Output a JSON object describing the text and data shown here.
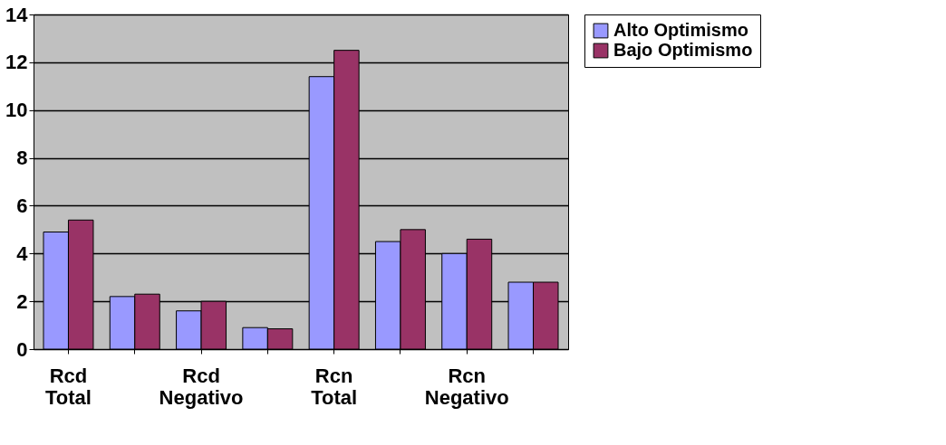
{
  "chart_data": {
    "type": "bar",
    "categories": [
      "Rcd Total",
      null,
      "Rcd Negativo",
      null,
      "Rcn Total",
      null,
      "Rcn Negativo",
      null
    ],
    "series": [
      {
        "name": "Alto Optimismo",
        "color": "#9999ff",
        "values": [
          4.9,
          2.2,
          1.6,
          0.9,
          11.4,
          4.5,
          4.0,
          2.8
        ]
      },
      {
        "name": "Bajo Optimismo",
        "color": "#993366",
        "values": [
          5.4,
          2.3,
          2.0,
          0.85,
          12.5,
          5.0,
          4.6,
          2.8
        ]
      }
    ],
    "ylim": [
      0,
      14
    ],
    "yticks": [
      0,
      2,
      4,
      6,
      8,
      10,
      12,
      14
    ],
    "grid": "y",
    "legend": "right"
  }
}
